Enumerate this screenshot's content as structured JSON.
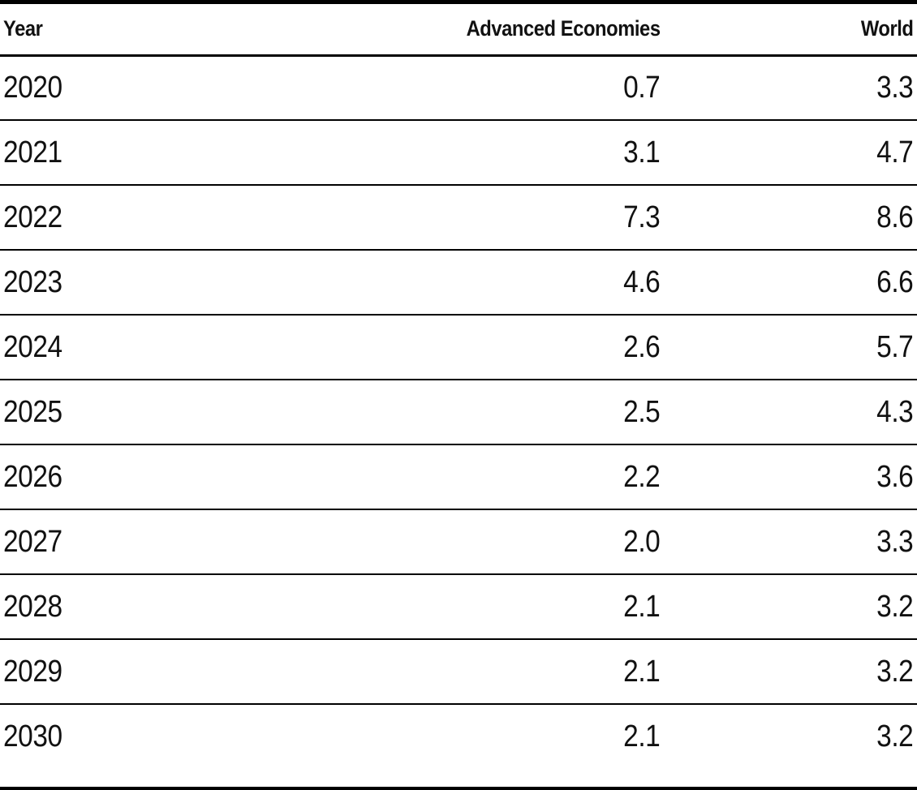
{
  "chart_data": {
    "type": "table",
    "columns": [
      "Year",
      "Advanced Economies",
      "World"
    ],
    "rows": [
      [
        "2020",
        "0.7",
        "3.3"
      ],
      [
        "2021",
        "3.1",
        "4.7"
      ],
      [
        "2022",
        "7.3",
        "8.6"
      ],
      [
        "2023",
        "4.6",
        "6.6"
      ],
      [
        "2024",
        "2.6",
        "5.7"
      ],
      [
        "2025",
        "2.5",
        "4.3"
      ],
      [
        "2026",
        "2.2",
        "3.6"
      ],
      [
        "2027",
        "2.0",
        "3.3"
      ],
      [
        "2028",
        "2.1",
        "3.2"
      ],
      [
        "2029",
        "2.1",
        "3.2"
      ],
      [
        "2030",
        "2.1",
        "3.2"
      ]
    ],
    "column_alignments": [
      "left",
      "right",
      "right"
    ],
    "title": "",
    "notes": "Plain data table, no gridlines between columns; horizontal rules between rows; thick rule at top and bottom"
  },
  "colors": {
    "background": "#ffffff",
    "text": "#111111",
    "rule": "#000000"
  }
}
